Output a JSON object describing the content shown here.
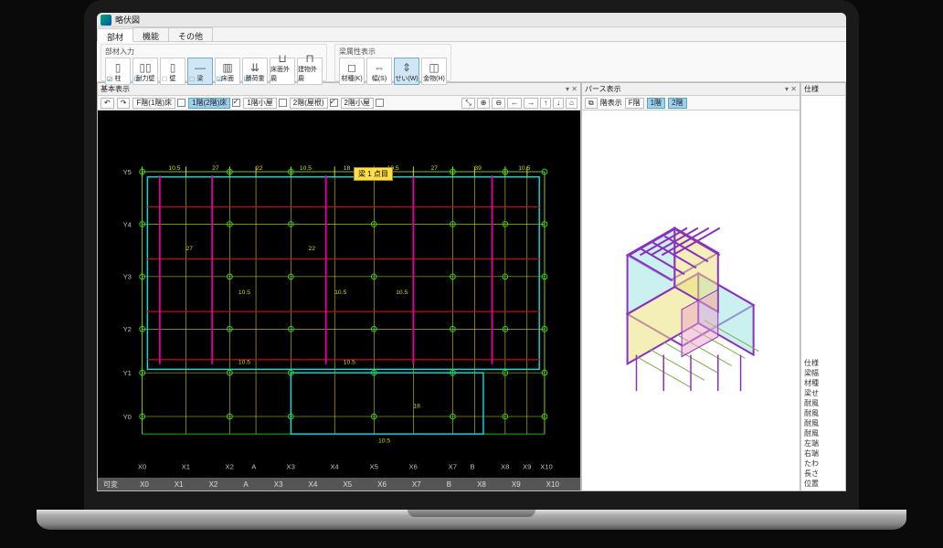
{
  "window": {
    "title": "略伏図"
  },
  "tabs": {
    "items": [
      "部材",
      "機能",
      "その他"
    ],
    "active_index": 0
  },
  "ribbon_group1_title": "部材入力",
  "ribbon_group1": [
    {
      "label": "柱",
      "glyph": "▯",
      "checked": true
    },
    {
      "label": "耐力壁",
      "glyph": "▯▯",
      "checked": true
    },
    {
      "label": "壁",
      "glyph": "▯",
      "checked": false
    },
    {
      "label": "梁",
      "glyph": "—",
      "checked": false,
      "active": true
    },
    {
      "label": "床面",
      "glyph": "▥",
      "checked": true
    },
    {
      "label": "積荷重",
      "glyph": "⇊",
      "checked": true
    },
    {
      "label": "床面外周",
      "glyph": "⊔",
      "checked": false
    },
    {
      "label": "建物外周",
      "glyph": "⊓",
      "checked": false
    }
  ],
  "ribbon_group2_title": "梁属性表示",
  "ribbon_group2": [
    {
      "label": "材種(K)",
      "glyph": "◻"
    },
    {
      "label": "幅(S)",
      "glyph": "⇔"
    },
    {
      "label": "せい(W)",
      "glyph": "⇕",
      "active": true
    },
    {
      "label": "金物(H)",
      "glyph": "◫"
    }
  ],
  "left_pane": {
    "title": "基本表示",
    "toolbar_chips": [
      {
        "label": "F階(1階)床",
        "checked": false
      },
      {
        "label": "1階(2階)床",
        "checked": true,
        "active": true
      },
      {
        "label": "1階小屋",
        "checked": false
      },
      {
        "label": "2階(屋根)",
        "checked": true
      },
      {
        "label": "2階小屋",
        "checked": false
      }
    ],
    "nav_icons": [
      "⤡",
      "⊕",
      "⊖",
      "←",
      "→",
      "↑",
      "↓",
      "⌂"
    ],
    "badge": "梁 1 点目",
    "x_labels": [
      "X0",
      "X1",
      "X2",
      "A",
      "X3",
      "X4",
      "X5",
      "X6",
      "X7",
      "B",
      "X8",
      "X9",
      "X10"
    ],
    "y_labels": [
      "Y5",
      "Y4",
      "Y3",
      "Y2",
      "Y1",
      "Y0"
    ],
    "dim_values": [
      "10.5",
      "27",
      "22",
      "10.5",
      "18",
      "10.5",
      "27",
      "39",
      "10.5"
    ]
  },
  "right_pane": {
    "title": "パース表示",
    "toolbar": {
      "label": "階表示",
      "chips": [
        "F階",
        "1階",
        "2階"
      ]
    }
  },
  "side_panel": {
    "title": "仕様",
    "items": [
      "仕様",
      "梁幅",
      "材種",
      "梁せ",
      "耐風",
      "耐風",
      "耐風",
      "耐風",
      "左端",
      "右端",
      "たわ",
      "長さ",
      "位置"
    ]
  },
  "status": {
    "left": "可変",
    "xlabels": [
      "X0",
      "X1",
      "X2",
      "A",
      "X3",
      "X4",
      "X5",
      "X6",
      "X7",
      "B",
      "X8",
      "X9",
      "X10"
    ]
  },
  "colors": {
    "grid_minor": "#1a1a1a",
    "grid_major": "#3a3a3a",
    "axis_label": "#c0c0c0",
    "beam_cyan": "#00e0e0",
    "beam_magenta": "#e000a0",
    "beam_yellow": "#d8d800",
    "beam_red": "#d01010",
    "beam_green": "#10c010",
    "node_green": "#20e020",
    "iso_purple": "#8a2fc2",
    "iso_yellow": "#e9e27a",
    "iso_cyan": "#9fe3e3",
    "iso_pink": "#e9a6c8"
  }
}
